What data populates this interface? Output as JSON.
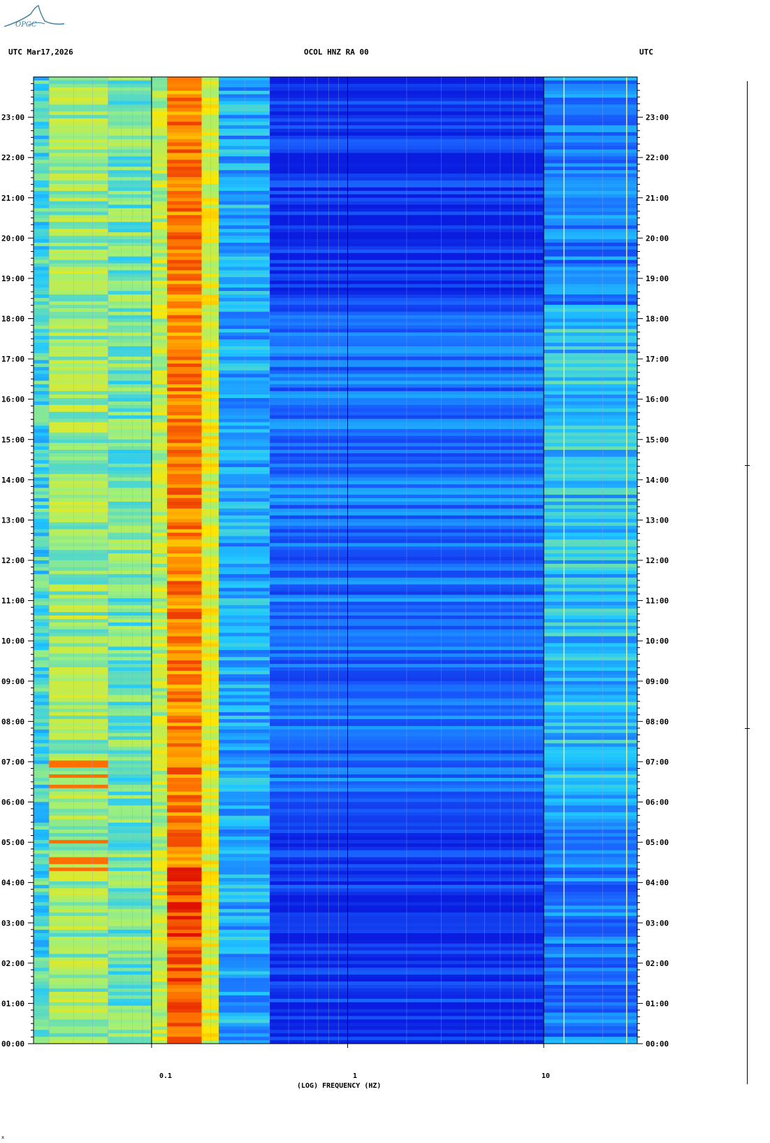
{
  "logo": {
    "text": "OPGC",
    "icon": "opgc-logo-icon",
    "color": "#3a7f9b"
  },
  "header": {
    "left": "UTC  Mar17,2026",
    "center": "OCOL HNZ RA 00",
    "right": "UTC"
  },
  "footer_mark": "x",
  "chart_data": {
    "type": "heatmap",
    "title": "OCOL HNZ RA 00",
    "date": "Mar17,2026",
    "xlabel": "(LOG) FREQUENCY (HZ)",
    "ylabel": "",
    "x_scale": "log",
    "xlim": [
      0.025,
      30
    ],
    "x_ticks": [
      {
        "value": 0.1,
        "label": "0.1"
      },
      {
        "value": 1,
        "label": "1"
      },
      {
        "value": 10,
        "label": "10"
      }
    ],
    "ylim": [
      0,
      24
    ],
    "y_unit": "hours UTC",
    "y_ticks": [
      "00:00",
      "01:00",
      "02:00",
      "03:00",
      "04:00",
      "05:00",
      "06:00",
      "07:00",
      "08:00",
      "09:00",
      "10:00",
      "11:00",
      "12:00",
      "13:00",
      "14:00",
      "15:00",
      "16:00",
      "17:00",
      "18:00",
      "19:00",
      "20:00",
      "21:00",
      "22:00",
      "23:00"
    ],
    "colormap": [
      "#0a1ce0",
      "#1a64ff",
      "#20c8ff",
      "#9ff07a",
      "#ffe600",
      "#ff7a00",
      "#e01000"
    ],
    "bands": [
      {
        "f_min": 0.025,
        "f_max": 0.03,
        "level": 0.38
      },
      {
        "f_min": 0.03,
        "f_max": 0.06,
        "level": 0.5
      },
      {
        "f_min": 0.06,
        "f_max": 0.1,
        "level": 0.45
      },
      {
        "f_min": 0.1,
        "f_max": 0.12,
        "level": 0.55
      },
      {
        "f_min": 0.12,
        "f_max": 0.18,
        "level": 0.82
      },
      {
        "f_min": 0.18,
        "f_max": 0.22,
        "level": 0.6
      },
      {
        "f_min": 0.22,
        "f_max": 0.4,
        "level": 0.28
      },
      {
        "f_min": 0.4,
        "f_max": 10,
        "level": 0.06
      },
      {
        "f_min": 10,
        "f_max": 30,
        "level": 0.2
      }
    ],
    "grid_freqs": [
      0.03,
      0.04,
      0.05,
      0.06,
      0.07,
      0.08,
      0.09,
      0.2,
      0.3,
      0.4,
      0.5,
      0.6,
      0.7,
      0.8,
      0.9,
      2,
      3,
      4,
      5,
      6,
      7,
      8,
      9,
      20
    ],
    "tonal_lines_hz": [
      12.7,
      26.5
    ],
    "activity_window_hours": [
      5.7,
      18.3
    ],
    "right_bar_marks_hours": [
      7.9,
      14.4
    ]
  }
}
